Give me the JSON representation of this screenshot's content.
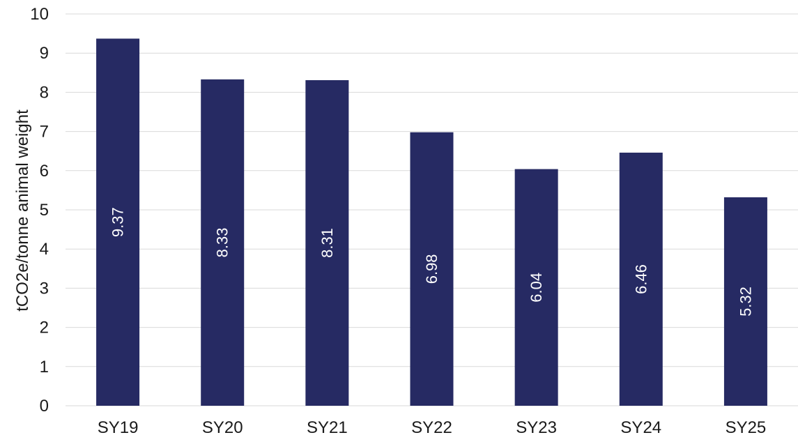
{
  "chart_data": {
    "type": "bar",
    "categories": [
      "SY19",
      "SY20",
      "SY21",
      "SY22",
      "SY23",
      "SY24",
      "SY25"
    ],
    "values": [
      9.37,
      8.33,
      8.31,
      6.98,
      6.04,
      6.46,
      5.32
    ],
    "data_labels": [
      "9.37",
      "8.33",
      "8.31",
      "6.98",
      "6.04",
      "6.46",
      "5.32"
    ],
    "ylabel": "tCO2e/tonne animal weight",
    "xlabel": "",
    "ylim": [
      0,
      10
    ],
    "yticks": [
      "0",
      "1",
      "2",
      "3",
      "4",
      "5",
      "6",
      "7",
      "8",
      "9",
      "10"
    ],
    "grid": true,
    "legend": "none",
    "bar_color": "#262a63",
    "label_orientation": "vertical"
  }
}
